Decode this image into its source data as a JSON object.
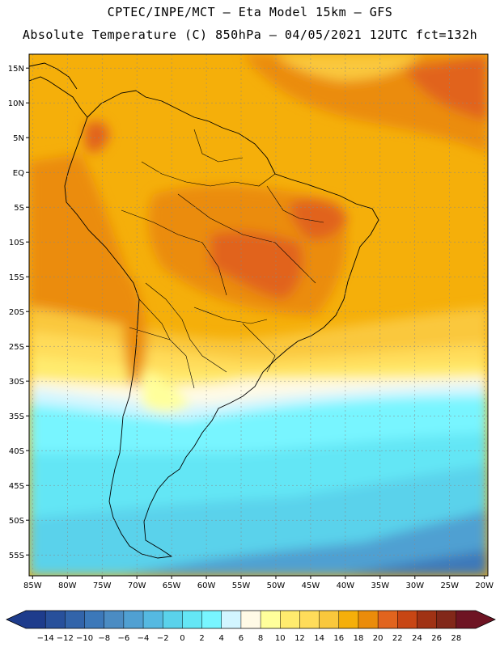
{
  "header": {
    "line1": "CPTEC/INPE/MCT –  Eta Model 15km – GFS",
    "line2": "Absolute Temperature (C) 850hPa – 04/05/2021 12UTC fct=132h"
  },
  "map": {
    "lat_labels": [
      "15N",
      "10N",
      "5N",
      "EQ",
      "5S",
      "10S",
      "15S",
      "20S",
      "25S",
      "30S",
      "35S",
      "40S",
      "45S",
      "50S",
      "55S"
    ],
    "lon_labels": [
      "85W",
      "80W",
      "75W",
      "70W",
      "65W",
      "60W",
      "55W",
      "50W",
      "45W",
      "40W",
      "35W",
      "30W",
      "25W",
      "20W"
    ],
    "lat_values": [
      15,
      10,
      5,
      0,
      -5,
      -10,
      -15,
      -20,
      -25,
      -30,
      -35,
      -40,
      -45,
      -50,
      -55
    ],
    "lon_values": [
      -85,
      -80,
      -75,
      -70,
      -65,
      -60,
      -55,
      -50,
      -45,
      -40,
      -35,
      -30,
      -25,
      -20
    ],
    "extent": {
      "lon_min": -85.5,
      "lon_max": -19.5,
      "lat_min": -58,
      "lat_max": 17
    }
  },
  "colorbar": {
    "labels": [
      "−14",
      "−12",
      "−10",
      "−8",
      "−6",
      "−4",
      "−2",
      "0",
      "2",
      "4",
      "6",
      "8",
      "10",
      "12",
      "14",
      "16",
      "18",
      "20",
      "22",
      "24",
      "26",
      "28"
    ],
    "colors": [
      "#1e3c8c",
      "#28509b",
      "#3264aa",
      "#3c78b9",
      "#4b8cc3",
      "#50a0d2",
      "#55b9e1",
      "#5ad2eb",
      "#64e6f5",
      "#78f5ff",
      "#d2f5ff",
      "#fffae6",
      "#ffff9b",
      "#ffeb6e",
      "#ffdc5a",
      "#fac83c",
      "#f5af0a",
      "#eb8c0a",
      "#e1641e",
      "#c84614",
      "#a03214",
      "#822819",
      "#6e1423"
    ],
    "under_color": "#1e3c8c",
    "over_color": "#6e1423"
  },
  "field_colors": {
    "t_minus4": "#3c78b9",
    "t_minus2": "#50a0d2",
    "t_0": "#5ad2eb",
    "t_2": "#64e6f5",
    "t_4": "#78f5ff",
    "t_6": "#d2f5ff",
    "t_8": "#fffae6",
    "t_10": "#ffff9b",
    "t_12": "#ffeb6e",
    "t_14": "#ffdc5a",
    "t_16": "#fac83c",
    "t_18": "#f5af0a",
    "t_20": "#eb8c0a",
    "t_22": "#e1641e",
    "t_24": "#c84614"
  }
}
